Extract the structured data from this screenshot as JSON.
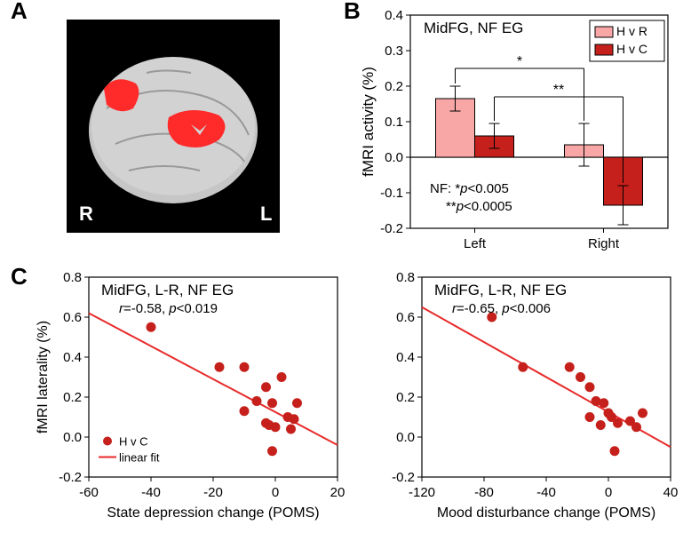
{
  "panel_labels": {
    "A": "A",
    "B": "B",
    "C": "C"
  },
  "panelA": {
    "R_label": "R",
    "L_label": "L",
    "bg_color": "#000000",
    "brain_color": "#cccccc",
    "activation_color": "#ff2a2a"
  },
  "panelB": {
    "type": "bar",
    "title": "MidFG, NF    EG",
    "legend": [
      {
        "label": "H v R",
        "color": "#f8a6a6"
      },
      {
        "label": "H v C",
        "color": "#c5201b"
      }
    ],
    "categories": [
      "Left",
      "Right"
    ],
    "series": [
      {
        "name": "HvR",
        "color": "#f8a6a6",
        "values": [
          0.165,
          0.035
        ],
        "errors": [
          0.035,
          0.06
        ]
      },
      {
        "name": "HvC",
        "color": "#c5201b",
        "values": [
          0.06,
          -0.135
        ],
        "errors": [
          0.035,
          0.055
        ]
      }
    ],
    "ylim": [
      -0.2,
      0.4
    ],
    "ytick_step": 0.1,
    "ylabel": "fMRI activity (%)",
    "sig1": {
      "label": "*",
      "between": [
        "Left-HvR",
        "Right-HvR"
      ]
    },
    "sig2": {
      "label": "**",
      "between": [
        "Left-HvC",
        "Right-HvC"
      ]
    },
    "annotation_line1": "NF: *p<0.005",
    "annotation_line2": "**p<0.0005",
    "axis_color": "#000000",
    "bar_border_color": "#000000",
    "text_color": "#000000",
    "title_fontsize": 17,
    "label_fontsize": 17,
    "tick_fontsize": 15,
    "legend_fontsize": 14
  },
  "panelC_left": {
    "type": "scatter",
    "title": "MidFG, L-R, NF    EG",
    "stat_text": "r=-0.58, p<0.019",
    "xlabel": "State depression change (POMS)",
    "ylabel": "fMRI laterality (%)",
    "xlim": [
      -60,
      20
    ],
    "xtick_step": 20,
    "ylim": [
      -0.2,
      0.8
    ],
    "ytick_step": 0.2,
    "point_color": "#c5201b",
    "line_color": "#e82a2a",
    "legend_point": "H v C",
    "legend_line": "linear fit",
    "points": [
      [
        -40,
        0.55
      ],
      [
        -18,
        0.35
      ],
      [
        -10,
        0.35
      ],
      [
        -10,
        0.13
      ],
      [
        -6,
        0.18
      ],
      [
        -3,
        0.25
      ],
      [
        -3,
        0.07
      ],
      [
        -2,
        0.06
      ],
      [
        0,
        0.05
      ],
      [
        -1,
        -0.07
      ],
      [
        -1,
        0.17
      ],
      [
        2,
        0.3
      ],
      [
        4,
        0.1
      ],
      [
        5,
        0.04
      ],
      [
        6,
        0.09
      ],
      [
        7,
        0.17
      ]
    ],
    "fit_line": {
      "x1": -60,
      "y1": 0.62,
      "x2": 20,
      "y2": -0.04
    },
    "axis_color": "#000000",
    "title_fontsize": 17,
    "label_fontsize": 16,
    "tick_fontsize": 15,
    "legend_fontsize": 13
  },
  "panelC_right": {
    "type": "scatter",
    "title": "MidFG, L-R, NF    EG",
    "stat_text": "r=-0.65, p<0.006",
    "xlabel": "Mood disturbance change (POMS)",
    "xlim": [
      -120,
      40
    ],
    "xtick_step": 40,
    "ylim": [
      -0.2,
      0.8
    ],
    "ytick_step": 0.2,
    "point_color": "#c5201b",
    "line_color": "#e82a2a",
    "points": [
      [
        -75,
        0.6
      ],
      [
        -55,
        0.35
      ],
      [
        -25,
        0.35
      ],
      [
        -18,
        0.3
      ],
      [
        -12,
        0.25
      ],
      [
        -12,
        0.1
      ],
      [
        -8,
        0.18
      ],
      [
        -5,
        0.06
      ],
      [
        -3,
        0.17
      ],
      [
        0,
        0.12
      ],
      [
        2,
        0.1
      ],
      [
        4,
        -0.07
      ],
      [
        6,
        0.07
      ],
      [
        14,
        0.08
      ],
      [
        18,
        0.05
      ],
      [
        22,
        0.12
      ]
    ],
    "fit_line": {
      "x1": -120,
      "y1": 0.65,
      "x2": 40,
      "y2": -0.05
    },
    "axis_color": "#000000",
    "title_fontsize": 17,
    "label_fontsize": 16,
    "tick_fontsize": 15
  }
}
